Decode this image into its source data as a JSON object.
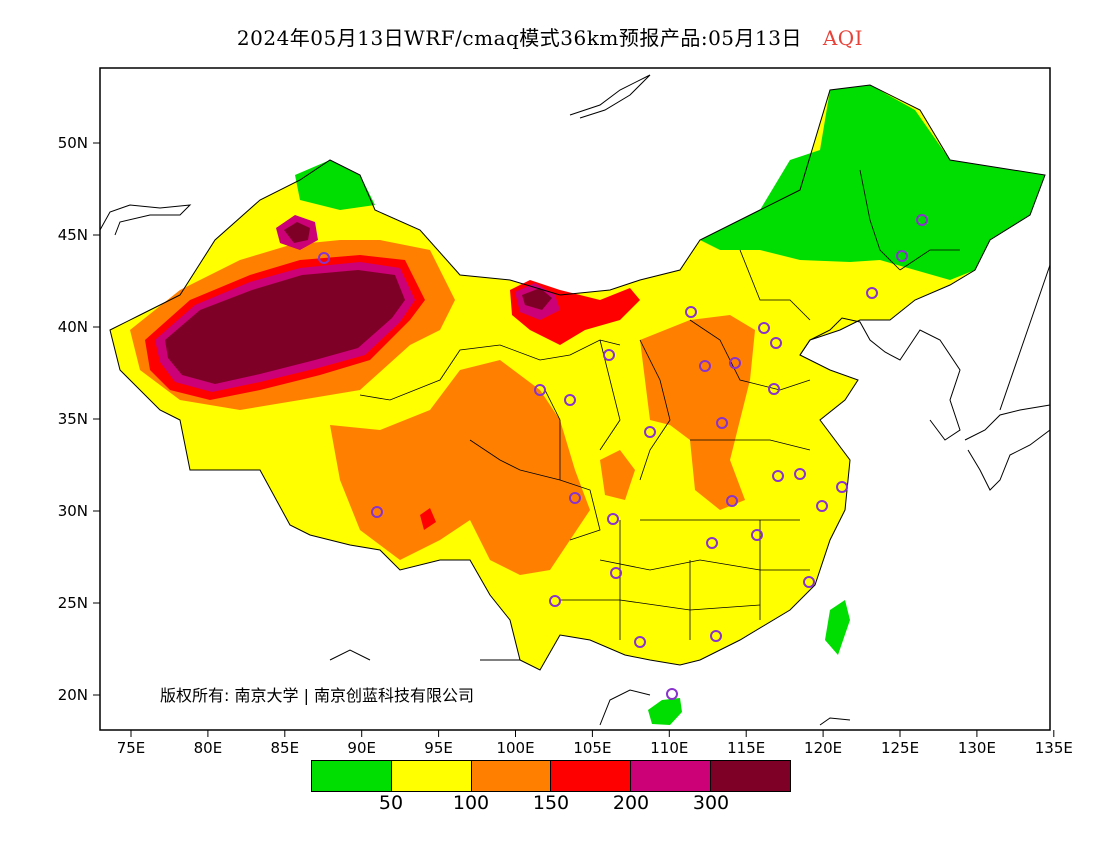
{
  "title": {
    "main": "2024年05月13日WRF/cmaq模式36km预报产品:05月13日",
    "variable": "AQI"
  },
  "map": {
    "lat_ticks": [
      "50N",
      "45N",
      "40N",
      "35N",
      "30N",
      "25N",
      "20N"
    ],
    "lon_ticks": [
      "75E",
      "80E",
      "85E",
      "90E",
      "95E",
      "100E",
      "105E",
      "110E",
      "115E",
      "120E",
      "125E",
      "130E",
      "135E"
    ],
    "copyright": "版权所有: 南京大学",
    "copyright2": "南京创蓝科技有限公司",
    "colors": {
      "good": "#00dd00",
      "moderate": "#ffff00",
      "sensitive": "#ff8000",
      "unhealthy": "#ff0000",
      "very_unhealthy": "#cc0077",
      "hazardous": "#7f0026",
      "station": "#8833cc"
    }
  },
  "legend": {
    "colors": [
      "#00dd00",
      "#ffff00",
      "#ff8000",
      "#ff0000",
      "#cc0077",
      "#7f0026"
    ],
    "labels": [
      "50",
      "100",
      "150",
      "200",
      "300"
    ]
  }
}
